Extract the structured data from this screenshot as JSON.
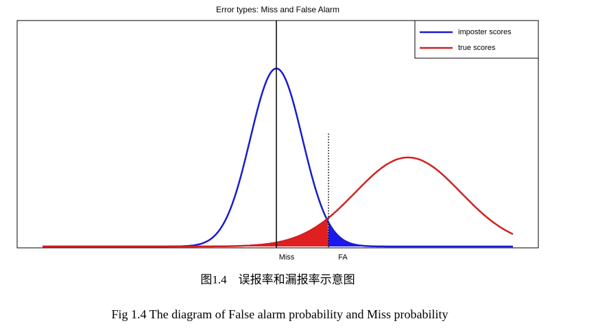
{
  "title": "Error types: Miss and False Alarm",
  "legend": [
    "imposter scores",
    "true scores"
  ],
  "markers": [
    "Miss",
    "FA"
  ],
  "caption_cn": "图1.4　误报率和漏报率示意图",
  "caption_en": "Fig 1.4 The diagram of False alarm probability and Miss probability"
}
